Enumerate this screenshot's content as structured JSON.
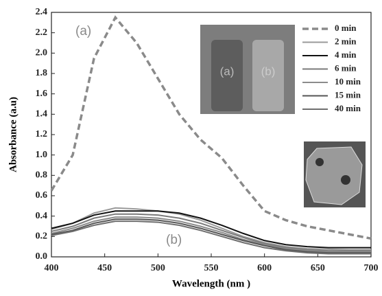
{
  "chart_data": {
    "type": "line",
    "x_label": "Wavelength (nm )",
    "y_label": "Absorbance (a.u)",
    "x": [
      400,
      420,
      440,
      460,
      480,
      500,
      520,
      540,
      560,
      580,
      600,
      620,
      640,
      660,
      680,
      700
    ],
    "series": [
      {
        "name": "0 min",
        "color": "#8a8a8a",
        "dashed": true,
        "values": [
          0.65,
          1.0,
          1.95,
          2.35,
          2.1,
          1.75,
          1.4,
          1.15,
          0.97,
          0.7,
          0.45,
          0.36,
          0.3,
          0.26,
          0.22,
          0.18
        ]
      },
      {
        "name": "2 min",
        "color": "#9a9a9a",
        "values": [
          0.27,
          0.33,
          0.43,
          0.48,
          0.47,
          0.45,
          0.42,
          0.36,
          0.28,
          0.2,
          0.14,
          0.1,
          0.08,
          0.075,
          0.07,
          0.07
        ]
      },
      {
        "name": "4 min",
        "color": "#111111",
        "values": [
          0.28,
          0.33,
          0.41,
          0.45,
          0.45,
          0.45,
          0.43,
          0.38,
          0.31,
          0.23,
          0.16,
          0.12,
          0.1,
          0.09,
          0.09,
          0.09
        ]
      },
      {
        "name": "6 min",
        "color": "#7a7a7a",
        "values": [
          0.25,
          0.3,
          0.38,
          0.42,
          0.42,
          0.41,
          0.38,
          0.33,
          0.26,
          0.19,
          0.13,
          0.09,
          0.07,
          0.06,
          0.06,
          0.06
        ]
      },
      {
        "name": "10 min",
        "color": "#8c8c8c",
        "values": [
          0.23,
          0.28,
          0.35,
          0.39,
          0.39,
          0.38,
          0.35,
          0.3,
          0.24,
          0.17,
          0.12,
          0.08,
          0.06,
          0.05,
          0.05,
          0.05
        ]
      },
      {
        "name": "15 min",
        "color": "#555555",
        "values": [
          0.22,
          0.26,
          0.33,
          0.37,
          0.37,
          0.36,
          0.33,
          0.28,
          0.22,
          0.16,
          0.11,
          0.07,
          0.05,
          0.04,
          0.04,
          0.04
        ]
      },
      {
        "name": "40 min",
        "color": "#6e6e6e",
        "values": [
          0.21,
          0.25,
          0.31,
          0.35,
          0.35,
          0.34,
          0.31,
          0.26,
          0.2,
          0.14,
          0.09,
          0.06,
          0.04,
          0.03,
          0.03,
          0.03
        ]
      }
    ],
    "xlim": [
      400,
      700
    ],
    "xticks": [
      400,
      450,
      500,
      550,
      600,
      650,
      700
    ],
    "ylim": [
      0,
      2.4
    ],
    "yticks": [
      {
        "value": 0,
        "label": "0.0"
      },
      {
        "value": 0.2,
        "label": "0.2"
      },
      {
        "value": 0.4,
        "label": "0.4"
      },
      {
        "value": 0.6,
        "label": "0.6"
      },
      {
        "value": 0.8,
        "label": "0.8"
      },
      {
        "value": 1.0,
        "label": "1.0"
      },
      {
        "value": 1.2,
        "label": "1.2"
      },
      {
        "value": 1.4,
        "label": "1.4"
      },
      {
        "value": 1.6,
        "label": "1.6"
      },
      {
        "value": 1.8,
        "label": "1.8"
      },
      {
        "value": 2.0,
        "label": "2.0"
      },
      {
        "value": 2.2,
        "label": "2.2"
      },
      {
        "value": 2.4,
        "label": "2.4"
      }
    ],
    "annotations": [
      "(a)",
      "(b)"
    ],
    "inset_labels": [
      "(a)",
      "(b)"
    ]
  }
}
